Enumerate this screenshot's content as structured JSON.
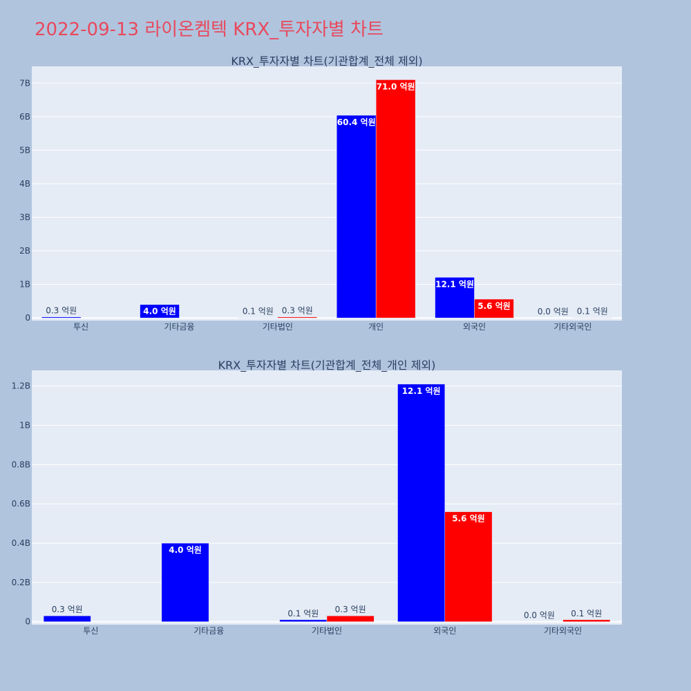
{
  "page_title": "2022-09-13 라이온켐텍 KRX_투자자별 차트",
  "colors": {
    "background": "#b0c4de",
    "plot_bg": "#e5ecf6",
    "title": "#e8495c",
    "series_1": "#0000ff",
    "series_2": "#ff0000"
  },
  "chart_data": [
    {
      "type": "bar",
      "title": "KRX_투자자별 차트(기관합계_전체 제외)",
      "categories": [
        "투신",
        "기타금융",
        "기타법인",
        "개인",
        "외국인",
        "기타외국인"
      ],
      "series": [
        {
          "color": "#0000ff",
          "values": [
            30000000,
            400000000,
            10000000,
            6040000000,
            1210000000,
            0
          ],
          "labels": [
            "0.3 억원",
            "4.0 억원",
            "0.1 억원",
            "60.4 억원",
            "12.1 억원",
            "0.0 억원"
          ]
        },
        {
          "color": "#ff0000",
          "values": [
            0,
            0,
            30000000,
            7100000000,
            560000000,
            10000000
          ],
          "labels": [
            "",
            "",
            "0.3 억원",
            "71.0 억원",
            "5.6 억원",
            "0.1 억원"
          ]
        }
      ],
      "ylim": [
        -80000000,
        7500000000
      ],
      "yticks": [
        0,
        1000000000,
        2000000000,
        3000000000,
        4000000000,
        5000000000,
        6000000000,
        7000000000
      ],
      "ytick_labels": [
        "0",
        "1B",
        "2B",
        "3B",
        "4B",
        "5B",
        "6B",
        "7B"
      ],
      "grid": true
    },
    {
      "type": "bar",
      "title": "KRX_투자자별 차트(기관합계_전체_개인 제외)",
      "categories": [
        "투신",
        "기타금융",
        "기타법인",
        "외국인",
        "기타외국인"
      ],
      "series": [
        {
          "color": "#0000ff",
          "values": [
            30000000,
            400000000,
            10000000,
            1210000000,
            0
          ],
          "labels": [
            "0.3 억원",
            "4.0 억원",
            "0.1 억원",
            "12.1 억원",
            "0.0 억원"
          ]
        },
        {
          "color": "#ff0000",
          "values": [
            0,
            0,
            30000000,
            560000000,
            10000000
          ],
          "labels": [
            "",
            "",
            "0.3 억원",
            "5.6 억원",
            "0.1 억원"
          ]
        }
      ],
      "ylim": [
        -15000000,
        1280000000
      ],
      "yticks": [
        0,
        200000000,
        400000000,
        600000000,
        800000000,
        1000000000,
        1200000000
      ],
      "ytick_labels": [
        "0",
        "0.2B",
        "0.4B",
        "0.6B",
        "0.8B",
        "1B",
        "1.2B"
      ],
      "grid": true
    }
  ]
}
